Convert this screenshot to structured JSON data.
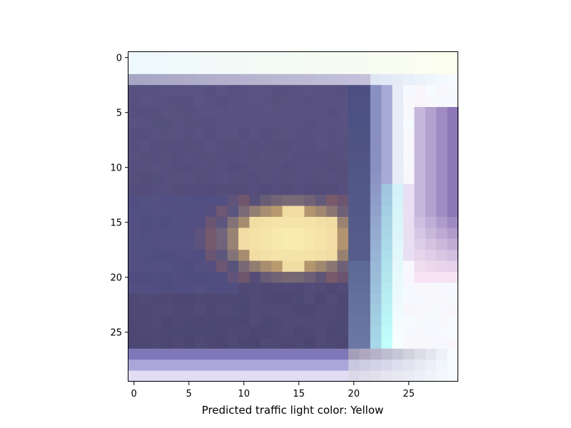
{
  "figure": {
    "xlabel": "Predicted traffic light color: Yellow"
  },
  "image": {
    "grid_size": 30,
    "description_colors": {
      "housing": "#55507e",
      "housing_dark": "#453f6a",
      "lamp_glow": "#f7e7a8",
      "lamp_edge": "#b59a6d",
      "frame_lavender": "#a9a4d6",
      "pole_cyan": "#b5ecf1",
      "background": "#f8fbff"
    }
  },
  "axes": {
    "x_ticks": [
      "0",
      "5",
      "10",
      "15",
      "20",
      "25"
    ],
    "y_ticks": [
      "0",
      "5",
      "10",
      "15",
      "20",
      "25"
    ],
    "x_tick_values": [
      0,
      5,
      10,
      15,
      20,
      25
    ],
    "y_tick_values": [
      0,
      5,
      10,
      15,
      20,
      25
    ]
  }
}
